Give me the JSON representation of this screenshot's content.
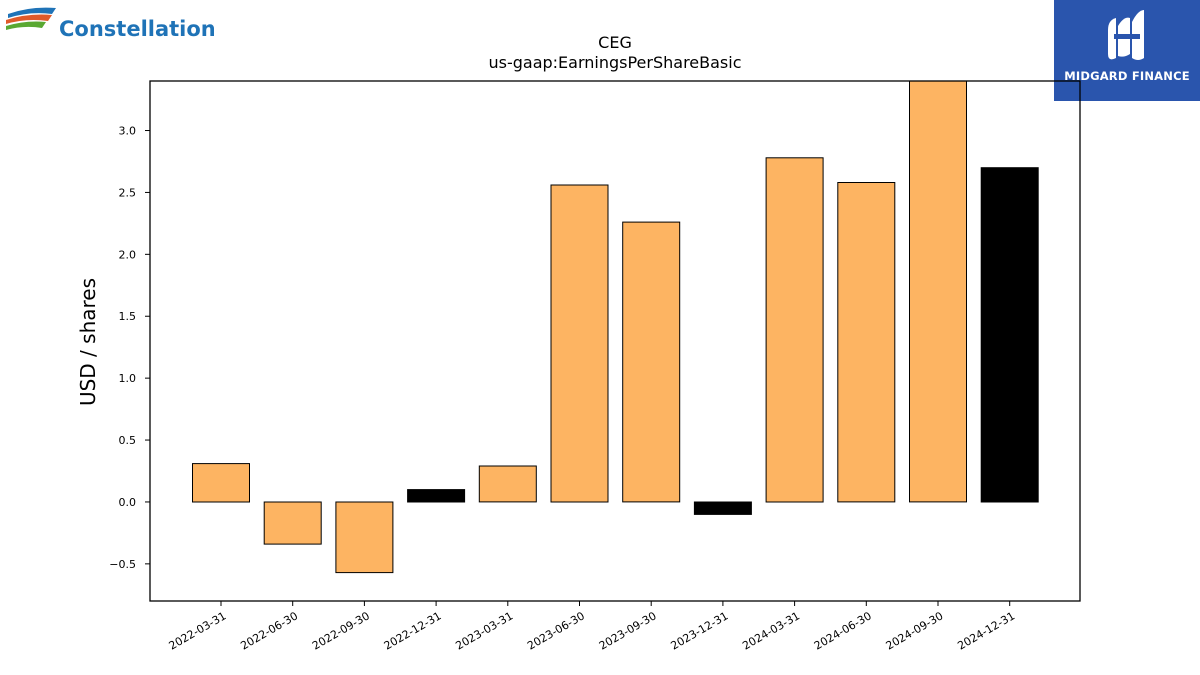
{
  "logos": {
    "left": {
      "name": "Constellation",
      "color": "#1f73b7"
    },
    "right": {
      "name": "MIDGARD FINANCE",
      "background": "#2a55ad"
    }
  },
  "chart_data": {
    "type": "bar",
    "title": "CEG",
    "subtitle": "us-gaap:EarningsPerShareBasic",
    "ylabel": "USD / shares",
    "xlabel": "",
    "ylim": [
      -0.8,
      3.4
    ],
    "yticks": [
      -0.5,
      0.0,
      0.5,
      1.0,
      1.5,
      2.0,
      2.5,
      3.0
    ],
    "categories": [
      "2022-03-31",
      "2022-06-30",
      "2022-09-30",
      "2022-12-31",
      "2023-03-31",
      "2023-06-30",
      "2023-09-30",
      "2023-12-31",
      "2024-03-31",
      "2024-06-30",
      "2024-09-30",
      "2024-12-31"
    ],
    "values": [
      0.31,
      -0.34,
      -0.57,
      0.1,
      0.29,
      2.56,
      2.26,
      -0.1,
      2.78,
      2.58,
      3.45,
      2.7
    ],
    "colors": {
      "quarter": "#fdb462",
      "annual": "#000000"
    },
    "bar_kind": [
      "quarter",
      "quarter",
      "quarter",
      "annual",
      "quarter",
      "quarter",
      "quarter",
      "annual",
      "quarter",
      "quarter",
      "quarter",
      "annual"
    ],
    "grid": false,
    "legend": "none"
  }
}
